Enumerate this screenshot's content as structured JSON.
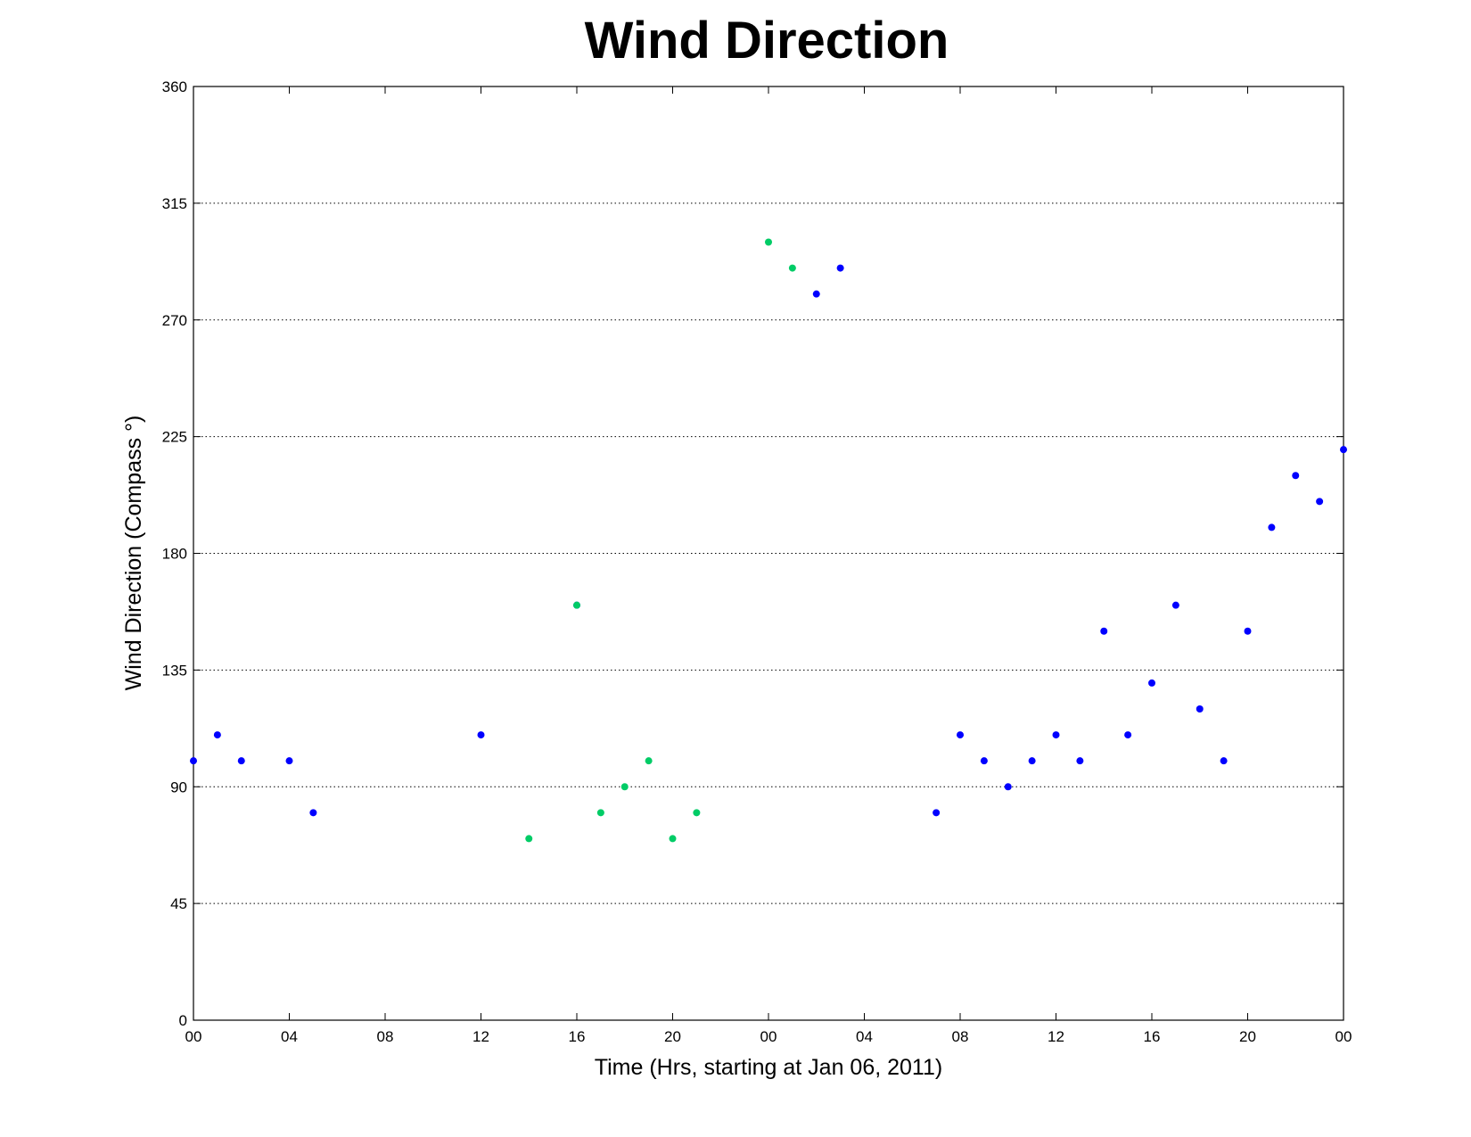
{
  "chart_data": {
    "type": "scatter",
    "title": "Wind Direction",
    "xlabel": "Time (Hrs, starting at Jan 06, 2011)",
    "ylabel": "Wind Direction (Compass  °)",
    "xlim": [
      0,
      48
    ],
    "ylim": [
      0,
      360
    ],
    "x_ticks": [
      0,
      4,
      8,
      12,
      16,
      20,
      24,
      28,
      32,
      36,
      40,
      44,
      48
    ],
    "x_tick_labels": [
      "00",
      "04",
      "08",
      "12",
      "16",
      "20",
      "00",
      "04",
      "08",
      "12",
      "16",
      "20",
      "00"
    ],
    "y_ticks": [
      0,
      45,
      90,
      135,
      180,
      225,
      270,
      315,
      360
    ],
    "y_tick_labels": [
      "0",
      "45",
      "90",
      "135",
      "180",
      "225",
      "270",
      "315",
      "360"
    ],
    "grid": "y-major dotted",
    "colors": {
      "blue": "#0000ff",
      "green": "#00cc66"
    },
    "series": [
      {
        "color": "#0000ff",
        "points": [
          {
            "x": 0,
            "y": 100
          },
          {
            "x": 1,
            "y": 110
          },
          {
            "x": 2,
            "y": 100
          },
          {
            "x": 4,
            "y": 100
          },
          {
            "x": 5,
            "y": 80
          },
          {
            "x": 12,
            "y": 110
          },
          {
            "x": 16,
            "y": 160
          },
          {
            "x": 26,
            "y": 280
          },
          {
            "x": 27,
            "y": 290
          },
          {
            "x": 31,
            "y": 80
          },
          {
            "x": 32,
            "y": 110
          },
          {
            "x": 33,
            "y": 100
          },
          {
            "x": 34,
            "y": 90
          },
          {
            "x": 35,
            "y": 100
          },
          {
            "x": 36,
            "y": 110
          },
          {
            "x": 37,
            "y": 100
          },
          {
            "x": 38,
            "y": 150
          },
          {
            "x": 39,
            "y": 110
          },
          {
            "x": 40,
            "y": 130
          },
          {
            "x": 41,
            "y": 160
          },
          {
            "x": 42,
            "y": 120
          },
          {
            "x": 43,
            "y": 100
          },
          {
            "x": 44,
            "y": 150
          },
          {
            "x": 45,
            "y": 190
          },
          {
            "x": 46,
            "y": 210
          },
          {
            "x": 47,
            "y": 200
          },
          {
            "x": 48,
            "y": 220
          }
        ]
      },
      {
        "color": "#00cc66",
        "points": [
          {
            "x": 14,
            "y": 70
          },
          {
            "x": 16,
            "y": 160
          },
          {
            "x": 17,
            "y": 80
          },
          {
            "x": 18,
            "y": 90
          },
          {
            "x": 19,
            "y": 100
          },
          {
            "x": 20,
            "y": 70
          },
          {
            "x": 21,
            "y": 80
          },
          {
            "x": 24,
            "y": 300
          },
          {
            "x": 25,
            "y": 290
          }
        ]
      }
    ]
  }
}
